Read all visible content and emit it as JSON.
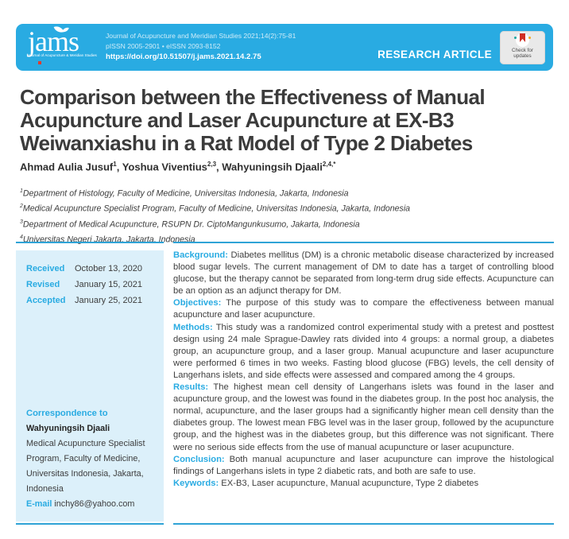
{
  "header": {
    "logo_text": "jams",
    "logo_tagline": "Journal of Acupuncture & Meridian Studies",
    "journal_line": "Journal of Acupuncture and Meridian Studies 2021;14(2):75-81",
    "issn_line": "pISSN 2005-2901 • eISSN 2093-8152",
    "doi": "https://doi.org/10.51507/j.jams.2021.14.2.75",
    "article_type": "RESEARCH ARTICLE",
    "badge_text": "Check for updates",
    "band_color": "#29ABE2"
  },
  "title": {
    "lines": [
      "Comparison between the Effectiveness of Manual",
      "Acupuncture and Laser Acupuncture at EX-B3",
      "Weiwanxiashu in a Rat Model of Type 2 Diabetes"
    ]
  },
  "authors": [
    {
      "name": "Ahmad Aulia Jusuf",
      "sup": "1",
      "sep": ", "
    },
    {
      "name": "Yoshua Viventius",
      "sup": "2,3",
      "sep": ", "
    },
    {
      "name": "Wahyuningsih Djaali",
      "sup": "2,4,*",
      "sep": ""
    }
  ],
  "affiliations": [
    {
      "sup": "1",
      "text": "Department of Histology, Faculty of Medicine, Universitas Indonesia, Jakarta, Indonesia"
    },
    {
      "sup": "2",
      "text": "Medical Acupuncture Specialist Program, Faculty of Medicine, Universitas Indonesia, Jakarta, Indonesia"
    },
    {
      "sup": "3",
      "text": "Department of Medical Acupuncture, RSUPN Dr. CiptoMangunkusumo, Jakarta, Indonesia"
    },
    {
      "sup": "4",
      "text": "Universitas Negeri Jakarta, Jakarta, Indonesia"
    }
  ],
  "history": [
    {
      "label": "Received",
      "value": "October 13, 2020"
    },
    {
      "label": "Revised",
      "value": "January 15, 2021"
    },
    {
      "label": "Accepted",
      "value": "January 25, 2021"
    }
  ],
  "correspondence": {
    "heading": "Correspondence to",
    "name": "Wahyuningsih Djaali",
    "address": "Medical Acupuncture Specialist Program, Faculty of Medicine, Universitas Indonesia, Jakarta, Indonesia",
    "email_label": "E-mail",
    "email": "inchy86@yahoo.com"
  },
  "abstract": {
    "sections": [
      {
        "label": "Background:",
        "text": " Diabetes mellitus (DM) is a chronic metabolic disease characterized by increased blood sugar levels. The current management of DM to date has a target of controlling blood glucose, but the therapy cannot be separated from long-term drug side effects. Acupuncture can be an option as an adjunct therapy for DM."
      },
      {
        "label": "Objectives:",
        "text": " The purpose of this study was to compare the effectiveness between manual acupuncture and laser acupuncture."
      },
      {
        "label": "Methods:",
        "text": " This study was a randomized control experimental study with a pretest and posttest design using 24 male Sprague-Dawley rats divided into 4 groups: a normal group, a diabetes group, an acupuncture group, and a laser group. Manual acupuncture and laser acupuncture were performed 6 times in two weeks. Fasting blood glucose (FBG) levels, the cell density of Langerhans islets, and side effects were assessed and compared among the 4 groups."
      },
      {
        "label": "Results:",
        "text": " The highest mean cell density of Langerhans islets was found in the laser and acupuncture group, and the lowest was found in the diabetes group. In the post hoc analysis, the normal, acupuncture, and the laser groups had a significantly higher mean cell density than the diabetes group. The lowest mean FBG level was in the laser group, followed by the acupuncture group, and the highest was in the diabetes group, but this difference was not significant. There were no serious side effects from the use of manual acupuncture or laser acupuncture."
      },
      {
        "label": "Conclusion:",
        "text": " Both manual acupuncture and laser acupuncture can improve the histological findings of Langerhans islets in type 2 diabetic rats, and both are safe to use."
      }
    ],
    "keywords_label": "Keywords:",
    "keywords_text": " EX-B3, Laser acupuncture, Manual acupuncture, Type 2 diabetes"
  }
}
